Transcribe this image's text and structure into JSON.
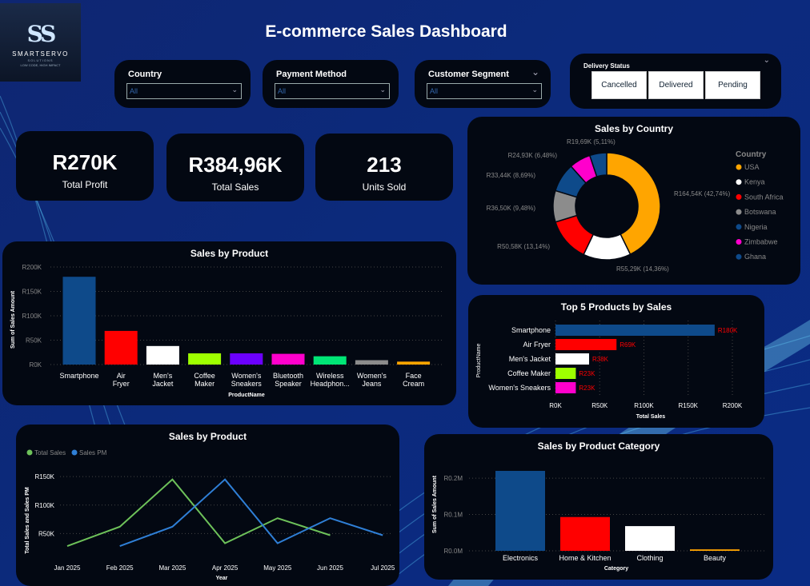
{
  "header": {
    "title": "E-commerce Sales Dashboard"
  },
  "logo": {
    "monogram": "SS",
    "brand": "SMARTSERVO",
    "sub": "SOLUTIONS",
    "tagline": "LOW CODE, HIGH IMPACT"
  },
  "slicers": [
    {
      "label": "Country",
      "value": "All"
    },
    {
      "label": "Payment Method",
      "value": "All"
    },
    {
      "label": "Customer Segment",
      "value": "All"
    }
  ],
  "delivery": {
    "label": "Delivery Status",
    "options": [
      "Cancelled",
      "Delivered",
      "Pending"
    ]
  },
  "kpis": [
    {
      "value": "R270K",
      "label": "Total Profit"
    },
    {
      "value": "R384,96K",
      "label": "Total Sales"
    },
    {
      "value": "213",
      "label": "Units Sold"
    }
  ],
  "colors": {
    "page_bg": "#0c2a7c",
    "card_bg": "#030812",
    "blue": "#0e4a8a",
    "red": "#ff0000",
    "orange": "#ffa500",
    "lime": "#9eff00",
    "purple": "#6b00ff",
    "magenta": "#ff00cc",
    "green": "#00e676",
    "gray": "#8c8c8c",
    "line_green": "#6ec25a",
    "line_blue": "#2f7fd6"
  },
  "chart_data": [
    {
      "id": "sales-by-country",
      "type": "pie",
      "title": "Sales by Country",
      "legend_title": "Country",
      "legend_position": "right",
      "categories": [
        "USA",
        "Kenya",
        "South Africa",
        "Botswana",
        "Nigeria",
        "Zimbabwe",
        "Ghana"
      ],
      "values": [
        164.54,
        55.29,
        50.58,
        36.5,
        33.44,
        24.93,
        19.69
      ],
      "labels": [
        "R164,54K (42,74%)",
        "R55,29K (14,36%)",
        "R50,58K (13,14%)",
        "R36,50K (9,48%)",
        "R33,44K (8,69%)",
        "R24,93K (6,48%)",
        "R19,69K (5,11%)"
      ],
      "colors": [
        "#ffa500",
        "#ffffff",
        "#ff0000",
        "#8c8c8c",
        "#0e4a8a",
        "#ff00cc",
        "#0e4a8a"
      ]
    },
    {
      "id": "sales-by-product",
      "type": "bar",
      "title": "Sales by Product",
      "xlabel": "ProductName",
      "ylabel": "Sum of Sales Amount",
      "ylim": [
        0,
        200
      ],
      "yticks": [
        "R0K",
        "R50K",
        "R100K",
        "R150K",
        "R200K"
      ],
      "categories": [
        "Smartphone",
        "Air Fryer",
        "Men's Jacket",
        "Coffee Maker",
        "Women's Sneakers",
        "Bluetooth Speaker",
        "Wireless Headphon...",
        "Women's Jeans",
        "Face Cream"
      ],
      "values": [
        180,
        69,
        38,
        23,
        23,
        22,
        17,
        9,
        6
      ],
      "colors": [
        "#0e4a8a",
        "#ff0000",
        "#ffffff",
        "#9eff00",
        "#6b00ff",
        "#ff00cc",
        "#00e676",
        "#8c8c8c",
        "#ffa500"
      ]
    },
    {
      "id": "top-5-products",
      "type": "bar",
      "orientation": "horizontal",
      "title": "Top 5 Products by Sales",
      "xlabel": "Total Sales",
      "ylabel": "ProductName",
      "xlim": [
        0,
        200
      ],
      "xticks": [
        "R0K",
        "R50K",
        "R100K",
        "R150K",
        "R200K"
      ],
      "categories": [
        "Smartphone",
        "Air Fryer",
        "Men's Jacket",
        "Coffee Maker",
        "Women's Sneakers"
      ],
      "values": [
        180,
        69,
        38,
        23,
        23
      ],
      "labels": [
        "R180K",
        "R69K",
        "R38K",
        "R23K",
        "R23K"
      ],
      "colors": [
        "#0e4a8a",
        "#ff0000",
        "#ffffff",
        "#9eff00",
        "#ff00cc"
      ]
    },
    {
      "id": "sales-by-month",
      "type": "line",
      "title": "Sales by Product",
      "xlabel": "Year",
      "ylabel": "Total Sales and Sales PM",
      "ylim": [
        0,
        160
      ],
      "yticks": [
        "R50K",
        "R100K",
        "R150K"
      ],
      "ytick_values": [
        50,
        100,
        150
      ],
      "x": [
        "Jan 2025",
        "Feb 2025",
        "Mar 2025",
        "Apr 2025",
        "May 2025",
        "Jun 2025",
        "Jul 2025"
      ],
      "series": [
        {
          "name": "Total Sales",
          "color": "#6ec25a",
          "values": [
            28,
            62,
            145,
            33,
            77,
            47,
            null
          ]
        },
        {
          "name": "Sales PM",
          "color": "#2f7fd6",
          "values": [
            null,
            28,
            62,
            145,
            33,
            77,
            47
          ]
        }
      ]
    },
    {
      "id": "sales-by-category",
      "type": "bar",
      "title": "Sales by Product Category",
      "xlabel": "Category",
      "ylabel": "Sum of Sales Amount",
      "ylim": [
        0,
        0.22
      ],
      "yticks": [
        "R0.0M",
        "R0.1M",
        "R0.2M"
      ],
      "ytick_values": [
        0,
        0.1,
        0.2
      ],
      "categories": [
        "Electronics",
        "Home & Kitchen",
        "Clothing",
        "Beauty"
      ],
      "values": [
        0.22,
        0.093,
        0.068,
        0.004
      ],
      "colors": [
        "#0e4a8a",
        "#ff0000",
        "#ffffff",
        "#ffa500"
      ]
    }
  ]
}
